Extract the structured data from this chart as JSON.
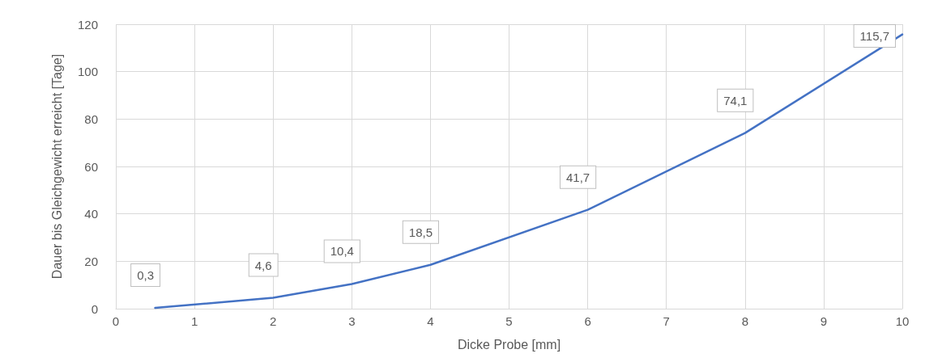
{
  "chart_data": {
    "type": "line",
    "xlabel": "Dicke Probe [mm]",
    "ylabel": "Dauer bis Gleichgewicht erreicht [Tage]",
    "x": [
      0.5,
      2,
      3,
      4,
      6,
      8,
      10
    ],
    "series": [
      {
        "color": "#4472c4",
        "values": [
          0.3,
          4.6,
          10.4,
          18.5,
          41.7,
          74.1,
          115.7
        ],
        "value_labels": [
          "0,3",
          "4,6",
          "10,4",
          "18,5",
          "41,7",
          "74,1",
          "115,7"
        ]
      }
    ],
    "xlim": [
      0,
      10
    ],
    "xticks": [
      0,
      1,
      2,
      3,
      4,
      5,
      6,
      7,
      8,
      9,
      10
    ],
    "ylim": [
      0,
      120
    ],
    "yticks": [
      0,
      20,
      40,
      60,
      80,
      100,
      120
    ],
    "grid": true,
    "marker": "none",
    "line_style": "solid"
  }
}
